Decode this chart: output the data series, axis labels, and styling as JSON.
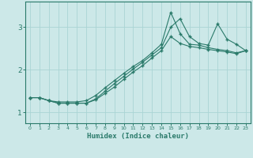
{
  "xlabel": "Humidex (Indice chaleur)",
  "bg_color": "#cce8e8",
  "grid_color": "#aad4d4",
  "line_color": "#2a7a6a",
  "xlim": [
    -0.5,
    23.5
  ],
  "ylim": [
    0.75,
    3.6
  ],
  "yticks": [
    1,
    2,
    3
  ],
  "xticks": [
    0,
    1,
    2,
    3,
    4,
    5,
    6,
    7,
    8,
    9,
    10,
    11,
    12,
    13,
    14,
    15,
    16,
    17,
    18,
    19,
    20,
    21,
    22,
    23
  ],
  "line1_x": [
    0,
    1,
    2,
    3,
    4,
    5,
    6,
    7,
    8,
    9,
    10,
    11,
    12,
    13,
    14,
    15,
    16,
    17,
    18,
    19,
    20,
    21,
    22,
    23
  ],
  "line1_y": [
    1.35,
    1.35,
    1.28,
    1.25,
    1.25,
    1.25,
    1.28,
    1.4,
    1.58,
    1.75,
    1.92,
    2.08,
    2.22,
    2.4,
    2.6,
    3.35,
    2.85,
    2.6,
    2.58,
    2.52,
    2.48,
    2.45,
    2.4,
    2.45
  ],
  "line2_x": [
    0,
    1,
    2,
    3,
    4,
    5,
    6,
    7,
    8,
    9,
    10,
    11,
    12,
    13,
    14,
    15,
    16,
    17,
    18,
    19,
    20,
    21,
    22,
    23
  ],
  "line2_y": [
    1.35,
    1.35,
    1.28,
    1.22,
    1.22,
    1.22,
    1.22,
    1.32,
    1.5,
    1.68,
    1.85,
    2.02,
    2.18,
    2.35,
    2.52,
    3.0,
    3.2,
    2.78,
    2.62,
    2.58,
    3.08,
    2.72,
    2.6,
    2.45
  ],
  "line3_x": [
    0,
    1,
    2,
    3,
    4,
    5,
    6,
    7,
    8,
    9,
    10,
    11,
    12,
    13,
    14,
    15,
    16,
    17,
    18,
    19,
    20,
    21,
    22,
    23
  ],
  "line3_y": [
    1.35,
    1.35,
    1.28,
    1.22,
    1.22,
    1.22,
    1.22,
    1.3,
    1.45,
    1.6,
    1.78,
    1.95,
    2.1,
    2.28,
    2.45,
    2.78,
    2.62,
    2.55,
    2.52,
    2.48,
    2.45,
    2.42,
    2.38,
    2.45
  ]
}
